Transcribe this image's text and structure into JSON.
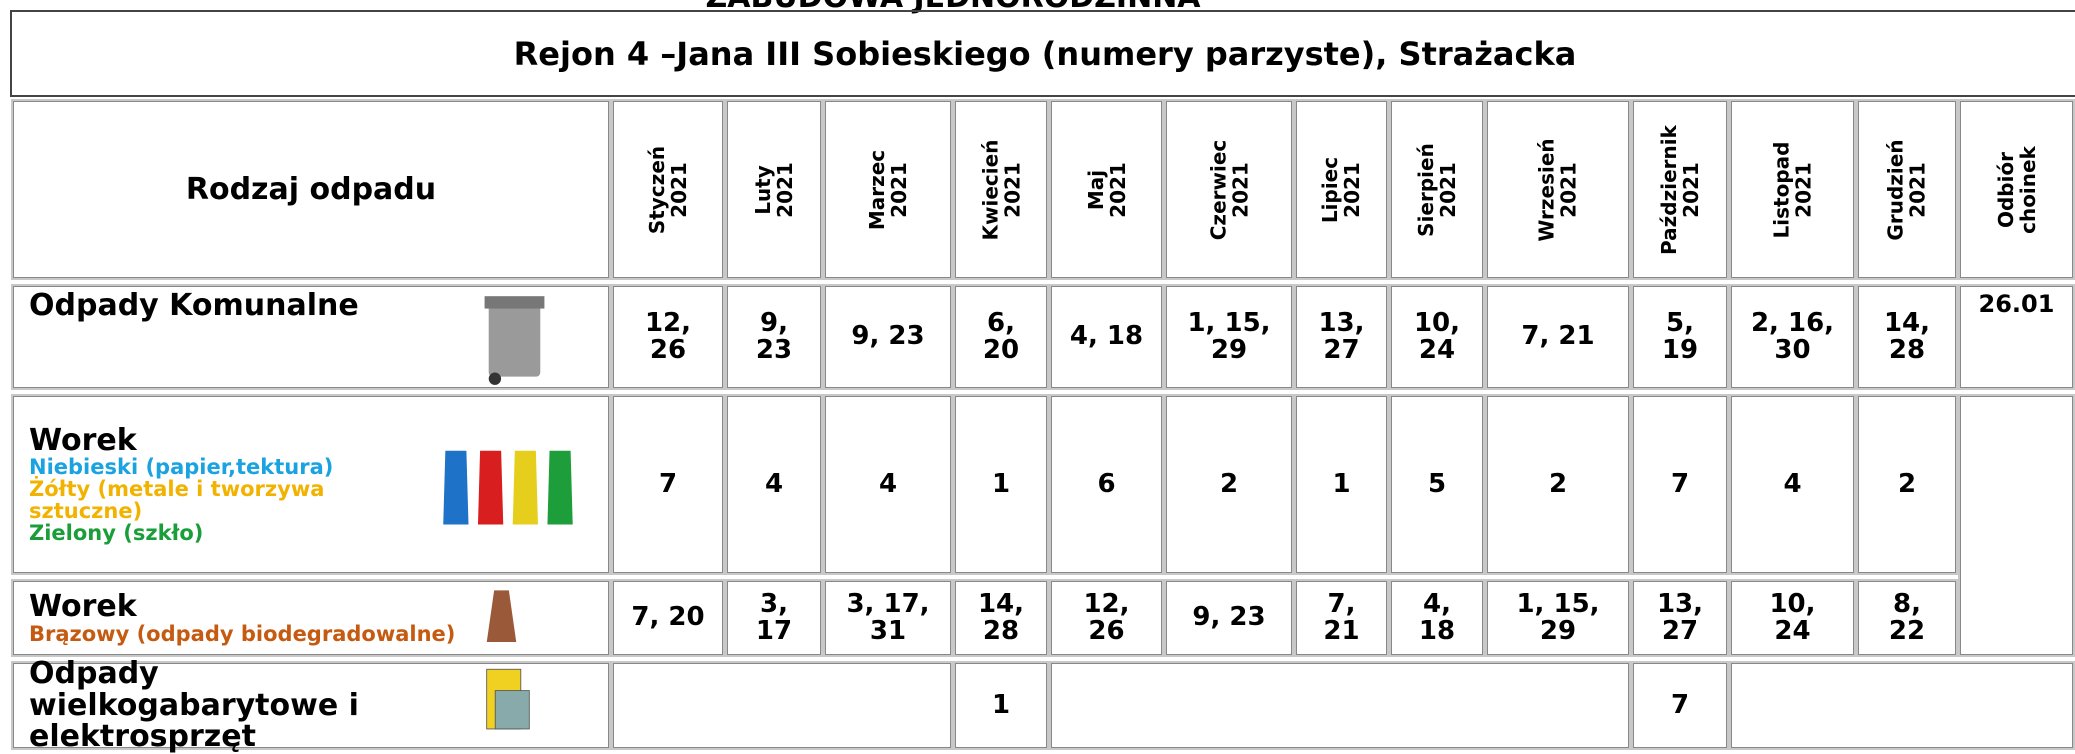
{
  "top_title": "ZABUDOWA JEDNORODZINNA",
  "region": "Rejon 4 –Jana III Sobieskiego (numery parzyste), Strażacka",
  "header": {
    "type_label": "Rodzaj odpadu",
    "months": [
      [
        "Styczeń",
        "2021"
      ],
      [
        "Luty",
        "2021"
      ],
      [
        "Marzec",
        "2021"
      ],
      [
        "Kwiecień",
        "2021"
      ],
      [
        "Maj",
        "2021"
      ],
      [
        "Czerwiec",
        "2021"
      ],
      [
        "Lipiec",
        "2021"
      ],
      [
        "Sierpień",
        "2021"
      ],
      [
        "Wrzesień",
        "2021"
      ],
      [
        "Październik",
        "2021"
      ],
      [
        "Listopad",
        "2021"
      ],
      [
        "Grudzień",
        "2021"
      ]
    ],
    "tree_label": [
      "Odbiór",
      "choinek"
    ]
  },
  "rows": [
    {
      "label": "Odpady Komunalne",
      "cells": [
        "12, 26",
        "9, 23",
        "9, 23",
        "6, 20",
        "4, 18",
        "1, 15, 29",
        "13, 27",
        "10, 24",
        "7, 21",
        "5, 19",
        "2, 16, 30",
        "14, 28"
      ],
      "tree": "26.01"
    },
    {
      "label": "Worek",
      "sublabels": [
        {
          "text": "Niebieski (papier,tektura)",
          "color": "#1aa3e0"
        },
        {
          "text": "Żółty (metale i tworzywa sztuczne)",
          "color": "#f2b200"
        },
        {
          "text": "Zielony (szkło)",
          "color": "#1a9e3a"
        }
      ],
      "cells": [
        "7",
        "4",
        "4",
        "1",
        "6",
        "2",
        "1",
        "5",
        "2",
        "7",
        "4",
        "2"
      ]
    },
    {
      "label": "Worek",
      "sublabels": [
        {
          "text": "Brązowy (odpady biodegradowalne)",
          "color": "#c55a11"
        }
      ],
      "cells": [
        "7, 20",
        "3, 17",
        "3, 17, 31",
        "14, 28",
        "12, 26",
        "9, 23",
        "7, 21",
        "4, 18",
        "1, 15, 29",
        "13, 27",
        "10, 24",
        "8, 22"
      ]
    },
    {
      "label": "Odpady wielkogabarytowe i elektrosprzęt",
      "cells": [
        null,
        null,
        null,
        "1",
        null,
        null,
        null,
        null,
        null,
        "7",
        null,
        null
      ]
    }
  ]
}
